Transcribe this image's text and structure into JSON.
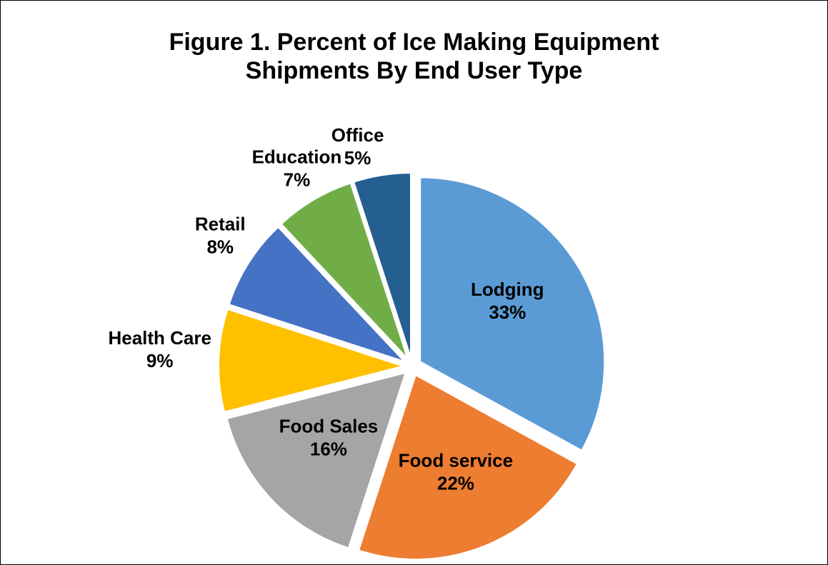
{
  "chart_data": {
    "type": "pie",
    "title_line1": "Figure 1. Percent of Ice Making Equipment",
    "title_line2": "Shipments By End User Type",
    "start_angle_deg": 0,
    "direction": "clockwise",
    "exploded": true,
    "slices": [
      {
        "label": "Lodging",
        "value_text": "33%",
        "value": 33,
        "color": "#5B9BD5"
      },
      {
        "label": "Food service",
        "value_text": "22%",
        "value": 22,
        "color": "#ED7D31"
      },
      {
        "label": "Food Sales",
        "value_text": "16%",
        "value": 16,
        "color": "#A5A5A5"
      },
      {
        "label": "Health Care",
        "value_text": "9%",
        "value": 9,
        "color": "#FFC000"
      },
      {
        "label": "Retail",
        "value_text": "8%",
        "value": 8,
        "color": "#4472C4"
      },
      {
        "label": "Education",
        "value_text": "7%",
        "value": 7,
        "color": "#70AD47"
      },
      {
        "label": "Office",
        "value_text": "5%",
        "value": 5,
        "color": "#255E91"
      }
    ]
  }
}
